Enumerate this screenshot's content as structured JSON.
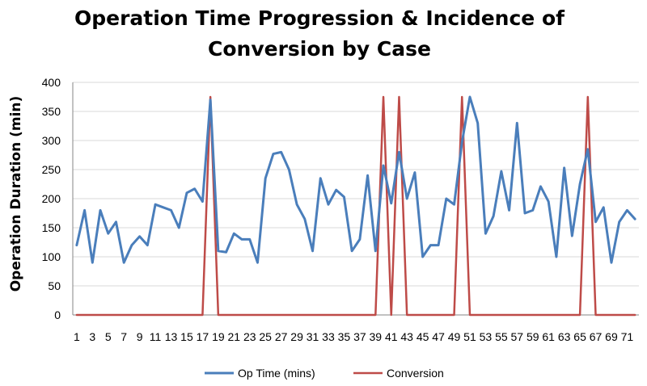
{
  "chart_data": {
    "type": "line",
    "title_line1": "Operation Time Progression & Incidence of",
    "title_line2": "Conversion by Case",
    "xlabel": "",
    "ylabel": "Operation Duration (min)",
    "ylim": [
      0,
      400
    ],
    "yticks": [
      0,
      50,
      100,
      150,
      200,
      250,
      300,
      350,
      400
    ],
    "x": [
      1,
      2,
      3,
      4,
      5,
      6,
      7,
      8,
      9,
      10,
      11,
      12,
      13,
      14,
      15,
      16,
      17,
      18,
      19,
      20,
      21,
      22,
      23,
      24,
      25,
      26,
      27,
      28,
      29,
      30,
      31,
      32,
      33,
      34,
      35,
      36,
      37,
      38,
      39,
      40,
      41,
      42,
      43,
      44,
      45,
      46,
      47,
      48,
      49,
      50,
      51,
      52,
      53,
      54,
      55,
      56,
      57,
      58,
      59,
      60,
      61,
      62,
      63,
      64,
      65,
      66,
      67,
      68,
      69,
      70,
      71,
      72
    ],
    "xtick_labels": [
      "1",
      "3",
      "5",
      "7",
      "9",
      "11",
      "13",
      "15",
      "17",
      "19",
      "21",
      "23",
      "25",
      "27",
      "29",
      "31",
      "33",
      "35",
      "37",
      "39",
      "41",
      "43",
      "45",
      "47",
      "49",
      "51",
      "53",
      "55",
      "57",
      "59",
      "61",
      "63",
      "65",
      "67",
      "69",
      "71"
    ],
    "grid": "horizontal",
    "legend_position": "bottom",
    "series": [
      {
        "name": "Op Time (mins)",
        "color": "#4a7ebb",
        "values": [
          120,
          180,
          90,
          180,
          140,
          160,
          90,
          120,
          135,
          120,
          190,
          185,
          180,
          150,
          210,
          217,
          195,
          370,
          110,
          108,
          140,
          130,
          130,
          90,
          235,
          277,
          280,
          250,
          190,
          165,
          110,
          235,
          190,
          215,
          203,
          110,
          130,
          240,
          110,
          257,
          192,
          280,
          200,
          245,
          100,
          120,
          120,
          200,
          190,
          297,
          375,
          330,
          140,
          170,
          247,
          180,
          330,
          175,
          180,
          221,
          195,
          100,
          253,
          136,
          225,
          285,
          160,
          185,
          90,
          160,
          180,
          165
        ]
      },
      {
        "name": "Conversion",
        "color": "#be4b48",
        "values": [
          0,
          0,
          0,
          0,
          0,
          0,
          0,
          0,
          0,
          0,
          0,
          0,
          0,
          0,
          0,
          0,
          0,
          375,
          0,
          0,
          0,
          0,
          0,
          0,
          0,
          0,
          0,
          0,
          0,
          0,
          0,
          0,
          0,
          0,
          0,
          0,
          0,
          0,
          0,
          375,
          0,
          375,
          0,
          0,
          0,
          0,
          0,
          0,
          0,
          375,
          0,
          0,
          0,
          0,
          0,
          0,
          0,
          0,
          0,
          0,
          0,
          0,
          0,
          0,
          0,
          375,
          0,
          0,
          0,
          0,
          0,
          0
        ]
      }
    ]
  }
}
